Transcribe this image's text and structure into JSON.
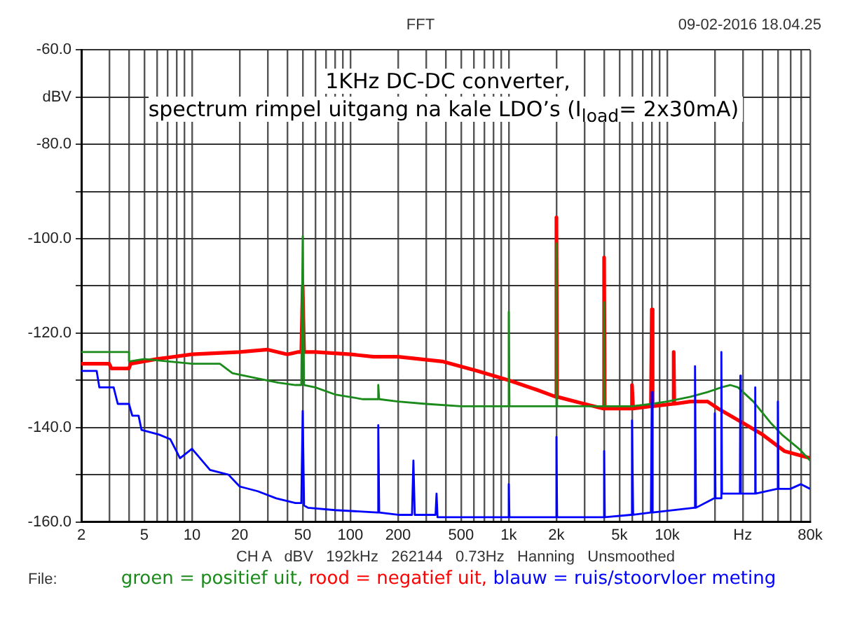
{
  "chart_data": {
    "type": "line",
    "title": "1KHz DC-DC converter,\nspectrum rimpel uitgang na kale LDO’s (I$_{load}$= 2x30mA)",
    "annotations": [
      "FFT",
      "09-02-2016 18.04.25",
      "CH A   dBV   192kHz   262144   0.73Hz   Hanning   Unsmoothed",
      "File:"
    ],
    "log": "x",
    "grid": true,
    "legend": "bottom",
    "xlim": [
      2,
      80000
    ],
    "ylim": [
      -160,
      -60
    ],
    "xticks": [
      2,
      {
        "value": 3,
        "label": null
      },
      {
        "value": 4,
        "label": null
      },
      5,
      {
        "value": 6,
        "label": null
      },
      {
        "value": 7,
        "label": null
      },
      {
        "value": 8,
        "label": null
      },
      {
        "value": 9,
        "label": null
      },
      10,
      20,
      {
        "value": 30,
        "label": null
      },
      {
        "value": 40,
        "label": null
      },
      50,
      {
        "value": 60,
        "label": null
      },
      {
        "value": 70,
        "label": null
      },
      {
        "value": 80,
        "label": null
      },
      {
        "value": 90,
        "label": null
      },
      100,
      200,
      {
        "value": 300,
        "label": null
      },
      {
        "value": 400,
        "label": null
      },
      500,
      {
        "value": 600,
        "label": null
      },
      {
        "value": 700,
        "label": null
      },
      {
        "value": 800,
        "label": null
      },
      {
        "value": 900,
        "label": null
      },
      {
        "value": 1000,
        "label": "1k"
      },
      {
        "value": 2000,
        "label": "2k"
      },
      {
        "value": 3000,
        "label": null
      },
      {
        "value": 4000,
        "label": null
      },
      {
        "value": 5000,
        "label": "5k"
      },
      {
        "value": 6000,
        "label": null
      },
      {
        "value": 7000,
        "label": null
      },
      {
        "value": 8000,
        "label": null
      },
      {
        "value": 9000,
        "label": null
      },
      {
        "value": 10000,
        "label": "10k"
      },
      {
        "value": 20000,
        "label": null
      },
      {
        "value": 30000,
        "label": "Hz"
      },
      {
        "value": 40000,
        "label": null
      },
      {
        "value": 50000,
        "label": null
      },
      {
        "value": 60000,
        "label": null
      },
      {
        "value": 70000,
        "label": null
      },
      {
        "value": 80000,
        "label": "80k"
      }
    ],
    "yticks": [
      {
        "value": -60,
        "label": "-60.0"
      },
      {
        "value": -70,
        "label": "dBV"
      },
      {
        "value": -80,
        "label": "-80.0"
      },
      {
        "value": -90,
        "label": null
      },
      {
        "value": -100,
        "label": "-100.0"
      },
      {
        "value": -110,
        "label": null
      },
      {
        "value": -120,
        "label": "-120.0"
      },
      {
        "value": -130,
        "label": null
      },
      {
        "value": -140,
        "label": "-140.0"
      },
      {
        "value": -150,
        "label": null
      },
      {
        "value": -160,
        "label": "-160.0"
      }
    ],
    "series": [
      {
        "name": "groen = positief uit,",
        "color": "#1a8a1a",
        "x": [
          2,
          4,
          4,
          5,
          10,
          15,
          18,
          25,
          35,
          45,
          49,
          50,
          51,
          60,
          80,
          120,
          148,
          150,
          152,
          200,
          300,
          500,
          800,
          990,
          1000,
          1010,
          1500,
          1980,
          2000,
          2020,
          3000,
          3960,
          4000,
          4040,
          6000,
          8000,
          10000,
          14000,
          18000,
          22000,
          25000,
          28000,
          35000,
          45000,
          53000,
          68000,
          80000
        ],
        "values": [
          -124,
          -124,
          -126,
          -125.5,
          -126.5,
          -126.5,
          -128.5,
          -129.5,
          -130.5,
          -131,
          -131,
          -99.5,
          -131,
          -131.5,
          -133,
          -134,
          -134,
          -131,
          -134,
          -134.5,
          -135,
          -135.5,
          -135.5,
          -135.5,
          -115.5,
          -135.5,
          -135.5,
          -135.5,
          -101,
          -135.5,
          -135.5,
          -135.5,
          -113.5,
          -135.5,
          -135.5,
          -135,
          -134.5,
          -133.5,
          -132.5,
          -131.5,
          -131,
          -131.5,
          -134.5,
          -139,
          -141.5,
          -144.5,
          -147
        ]
      },
      {
        "name": "rood = negatief uit,",
        "color": "#ff0000",
        "x": [
          2,
          3,
          3.1,
          4,
          4.1,
          6,
          10,
          20,
          30,
          40,
          47,
          49,
          50,
          51,
          60,
          100,
          140,
          200,
          380,
          630,
          1000,
          1500,
          1980,
          2000,
          2020,
          3000,
          3960,
          4000,
          4040,
          5900,
          6000,
          6100,
          7900,
          8000,
          8100,
          10900,
          11000,
          11100,
          14000,
          18000,
          21000,
          30000,
          40000,
          55000,
          80000
        ],
        "values": [
          -126.5,
          -126.5,
          -127.5,
          -127.5,
          -126.5,
          -125.5,
          -124.5,
          -124,
          -123.5,
          -124.5,
          -124,
          -124,
          -110,
          -124,
          -124,
          -124.5,
          -125,
          -125,
          -126,
          -128,
          -130,
          -132,
          -133.5,
          -95.5,
          -133.5,
          -135,
          -136,
          -104,
          -136,
          -136,
          -131,
          -136,
          -135.5,
          -115,
          -135.5,
          -135,
          -124,
          -135,
          -134.5,
          -134.5,
          -136,
          -139,
          -141.5,
          -145,
          -146.5
        ]
      },
      {
        "name": "blauw = ruis/stoorvloer meting",
        "color": "#0000ff",
        "x": [
          2,
          2.5,
          2.6,
          3.2,
          3.4,
          4,
          4.2,
          4.6,
          4.8,
          6.2,
          7.3,
          8.4,
          10,
          13,
          17,
          20,
          26,
          34,
          45,
          49,
          50,
          51,
          54,
          80,
          148,
          150,
          152,
          200,
          245,
          250,
          255,
          345,
          350,
          355,
          500,
          800,
          990,
          1000,
          1010,
          1980,
          2000,
          2020,
          3000,
          3960,
          4000,
          4040,
          5900,
          6000,
          6100,
          7900,
          8000,
          8100,
          14800,
          15000,
          15200,
          19800,
          20000,
          20200,
          21800,
          22000,
          22200,
          28800,
          29000,
          29200,
          35800,
          36000,
          36200,
          49500,
          50000,
          50500,
          60000,
          70000,
          80000
        ],
        "values": [
          -128,
          -128,
          -131.5,
          -131.5,
          -135,
          -135,
          -137.5,
          -137.5,
          -140.5,
          -141.5,
          -142.5,
          -146.5,
          -144.5,
          -149,
          -150,
          -152.5,
          -153.5,
          -155,
          -156,
          -156,
          -136.5,
          -156.5,
          -157,
          -157.5,
          -158,
          -139.5,
          -158,
          -158.5,
          -158.5,
          -147,
          -158.5,
          -158.5,
          -154,
          -159,
          -159,
          -159,
          -159,
          -152,
          -159,
          -159,
          -142,
          -159,
          -159,
          -159,
          -145,
          -159,
          -158.5,
          -138.5,
          -158.5,
          -158,
          -132.5,
          -158,
          -157,
          -127,
          -157,
          -155,
          -137,
          -155,
          -155,
          -124,
          -154,
          -154,
          -129,
          -154,
          -154,
          -131.5,
          -154,
          -153,
          -134.5,
          -153,
          -153,
          -152,
          -153
        ]
      }
    ]
  }
}
